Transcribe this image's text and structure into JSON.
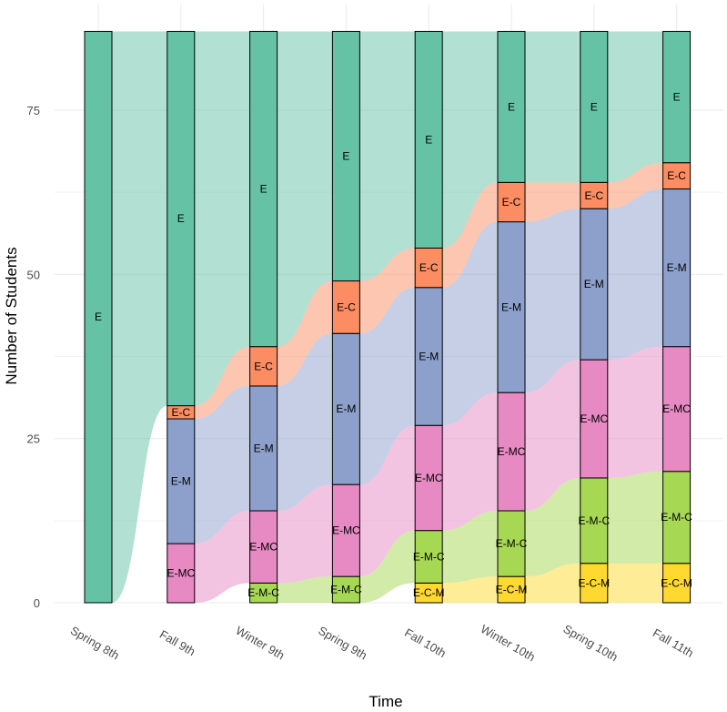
{
  "chart_data": {
    "type": "alluvial",
    "xlabel": "Time",
    "ylabel": "Number of Students",
    "ylim": [
      0,
      87
    ],
    "yticks": [
      0,
      25,
      50,
      75
    ],
    "grid": true,
    "stratum_order_bottom_to_top": [
      "E-C-M",
      "E-M-C",
      "E-MC",
      "E-M",
      "E-C",
      "E"
    ],
    "colors": {
      "E": "#66c2a5",
      "E-C": "#fc8d62",
      "E-M": "#8da0cb",
      "E-MC": "#e78ac3",
      "E-M-C": "#a6d854",
      "E-C-M": "#ffd92f"
    },
    "timepoints": [
      {
        "label": "Spring 8th",
        "counts": {
          "E": 87
        }
      },
      {
        "label": "Fall 9th",
        "counts": {
          "E-MC": 9,
          "E-M": 19,
          "E-C": 2,
          "E": 57
        }
      },
      {
        "label": "Winter 9th",
        "counts": {
          "E-M-C": 3,
          "E-MC": 11,
          "E-M": 19,
          "E-C": 6,
          "E": 48
        }
      },
      {
        "label": "Spring 9th",
        "counts": {
          "E-M-C": 4,
          "E-MC": 14,
          "E-M": 23,
          "E-C": 8,
          "E": 38
        }
      },
      {
        "label": "Fall 10th",
        "counts": {
          "E-C-M": 3,
          "E-M-C": 8,
          "E-MC": 16,
          "E-M": 21,
          "E-C": 6,
          "E": 33
        }
      },
      {
        "label": "Winter 10th",
        "counts": {
          "E-C-M": 4,
          "E-M-C": 10,
          "E-MC": 18,
          "E-M": 26,
          "E-C": 6,
          "E": 23
        }
      },
      {
        "label": "Spring 10th",
        "counts": {
          "E-C-M": 6,
          "E-M-C": 13,
          "E-MC": 18,
          "E-M": 23,
          "E-C": 4,
          "E": 23
        }
      },
      {
        "label": "Fall 11th",
        "counts": {
          "E-C-M": 6,
          "E-M-C": 14,
          "E-MC": 19,
          "E-M": 24,
          "E-C": 4,
          "E": 20
        }
      }
    ]
  }
}
